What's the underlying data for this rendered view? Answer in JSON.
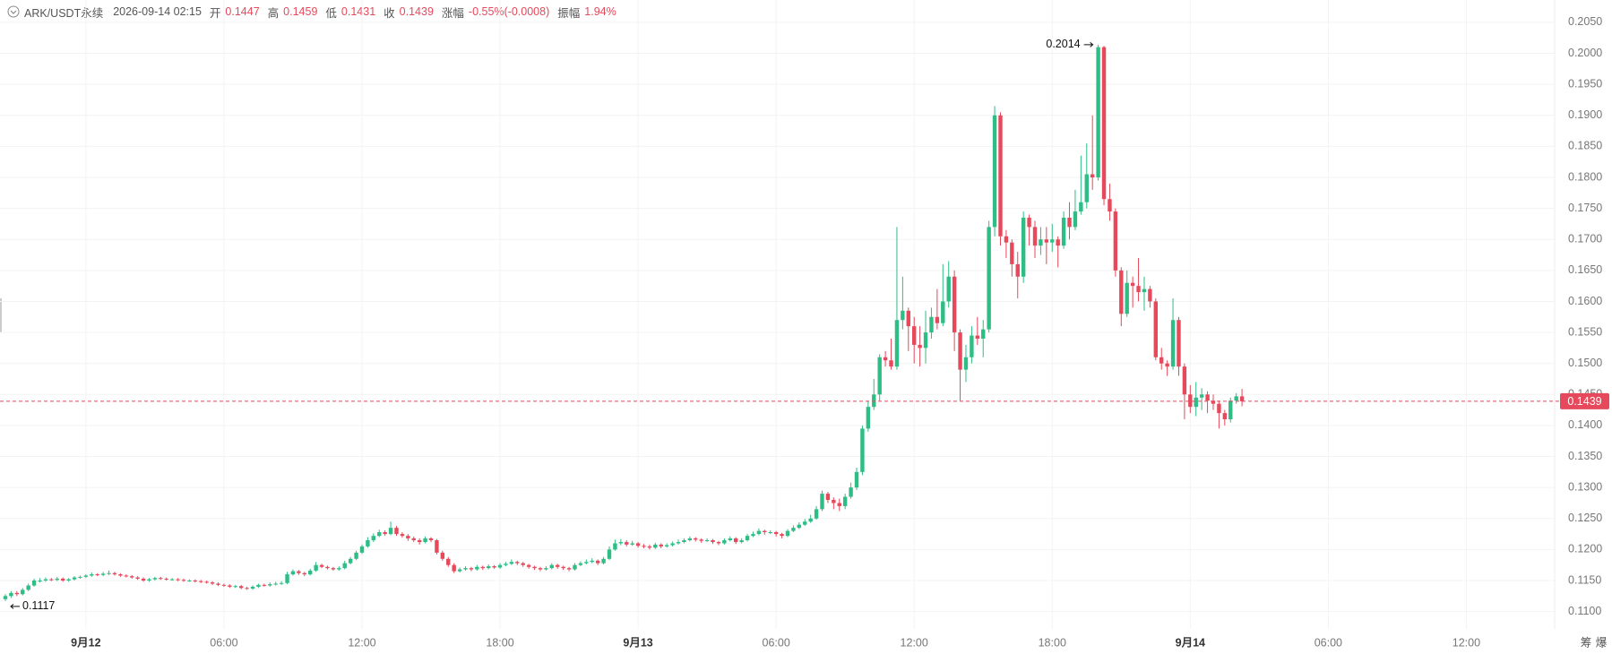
{
  "chart_data": {
    "type": "candlestick",
    "symbol": "ARK/USDT永续",
    "time": "2026-09-14 02:15",
    "fields": [
      {
        "label": "开",
        "value": "0.1447"
      },
      {
        "label": "高",
        "value": "0.1459"
      },
      {
        "label": "低",
        "value": "0.1431"
      },
      {
        "label": "收",
        "value": "0.1439"
      },
      {
        "label": "涨幅",
        "value": "-0.55%(-0.0008)"
      },
      {
        "label": "振幅",
        "value": "1.94%"
      }
    ],
    "up_color": "#2ebd85",
    "down_color": "#e5495b",
    "grid": true,
    "ylim": [
      0.1072,
      0.2086
    ],
    "yticks": [
      {
        "value": 0.11,
        "label": "0.1100"
      },
      {
        "value": 0.115,
        "label": "0.1150"
      },
      {
        "value": 0.12,
        "label": "0.1200"
      },
      {
        "value": 0.125,
        "label": "0.1250"
      },
      {
        "value": 0.13,
        "label": "0.1300"
      },
      {
        "value": 0.135,
        "label": "0.1350"
      },
      {
        "value": 0.14,
        "label": "0.1400"
      },
      {
        "value": 0.145,
        "label": "0.1450"
      },
      {
        "value": 0.15,
        "label": "0.1500"
      },
      {
        "value": 0.155,
        "label": "0.1550"
      },
      {
        "value": 0.16,
        "label": "0.1600"
      },
      {
        "value": 0.165,
        "label": "0.1650"
      },
      {
        "value": 0.17,
        "label": "0.1700"
      },
      {
        "value": 0.175,
        "label": "0.1750"
      },
      {
        "value": 0.18,
        "label": "0.1800"
      },
      {
        "value": 0.185,
        "label": "0.1850"
      },
      {
        "value": 0.19,
        "label": "0.1900"
      },
      {
        "value": 0.195,
        "label": "0.1950"
      },
      {
        "value": 0.2,
        "label": "0.2000"
      },
      {
        "value": 0.205,
        "label": "0.2050"
      }
    ],
    "xticks": [
      "9月12",
      "06:00",
      "12:00",
      "18:00",
      "9月13",
      "06:00",
      "12:00",
      "18:00",
      "9月14",
      "06:00",
      "12:00"
    ],
    "last_price": 0.1439,
    "max_label": "0.2014",
    "min_label": "0.1117",
    "toolbar": [
      "筹",
      "爆"
    ],
    "ohlc": [
      [
        0.112,
        0.1128,
        0.1117,
        0.1125
      ],
      [
        0.1125,
        0.1133,
        0.1122,
        0.113
      ],
      [
        0.113,
        0.1133,
        0.1125,
        0.1128
      ],
      [
        0.1128,
        0.1138,
        0.1126,
        0.1135
      ],
      [
        0.1135,
        0.1145,
        0.1133,
        0.1142
      ],
      [
        0.1142,
        0.1153,
        0.114,
        0.115
      ],
      [
        0.115,
        0.1154,
        0.1147,
        0.115
      ],
      [
        0.115,
        0.1155,
        0.1148,
        0.1152
      ],
      [
        0.1152,
        0.1154,
        0.1149,
        0.1151
      ],
      [
        0.1151,
        0.1156,
        0.1149,
        0.1153
      ],
      [
        0.1153,
        0.1155,
        0.1148,
        0.115
      ],
      [
        0.115,
        0.1154,
        0.1148,
        0.1152
      ],
      [
        0.1152,
        0.1157,
        0.115,
        0.1155
      ],
      [
        0.1155,
        0.1158,
        0.1153,
        0.1156
      ],
      [
        0.1156,
        0.116,
        0.1154,
        0.1158
      ],
      [
        0.1158,
        0.1163,
        0.1156,
        0.116
      ],
      [
        0.116,
        0.1162,
        0.1157,
        0.1159
      ],
      [
        0.1159,
        0.1164,
        0.1157,
        0.1161
      ],
      [
        0.1161,
        0.1166,
        0.1159,
        0.1162
      ],
      [
        0.1162,
        0.1164,
        0.1158,
        0.116
      ],
      [
        0.116,
        0.1162,
        0.1156,
        0.1158
      ],
      [
        0.1158,
        0.116,
        0.1155,
        0.1157
      ],
      [
        0.1157,
        0.1159,
        0.1153,
        0.1155
      ],
      [
        0.1155,
        0.1157,
        0.1151,
        0.1153
      ],
      [
        0.1153,
        0.1155,
        0.1148,
        0.115
      ],
      [
        0.115,
        0.1154,
        0.1148,
        0.1152
      ],
      [
        0.1152,
        0.1156,
        0.115,
        0.1154
      ],
      [
        0.1154,
        0.1156,
        0.1151,
        0.1153
      ],
      [
        0.1153,
        0.1155,
        0.115,
        0.1152
      ],
      [
        0.1152,
        0.1154,
        0.115,
        0.1152
      ],
      [
        0.1152,
        0.1154,
        0.1149,
        0.1151
      ],
      [
        0.1151,
        0.1153,
        0.1148,
        0.115
      ],
      [
        0.115,
        0.1152,
        0.1148,
        0.115
      ],
      [
        0.115,
        0.1152,
        0.1147,
        0.1149
      ],
      [
        0.1149,
        0.1151,
        0.1146,
        0.1148
      ],
      [
        0.1148,
        0.115,
        0.1145,
        0.1147
      ],
      [
        0.1147,
        0.1149,
        0.1143,
        0.1145
      ],
      [
        0.1145,
        0.1147,
        0.1141,
        0.1143
      ],
      [
        0.1143,
        0.1145,
        0.114,
        0.1142
      ],
      [
        0.1142,
        0.1144,
        0.1138,
        0.114
      ],
      [
        0.114,
        0.1143,
        0.1138,
        0.1141
      ],
      [
        0.1141,
        0.1143,
        0.1136,
        0.1138
      ],
      [
        0.1138,
        0.114,
        0.1135,
        0.1137
      ],
      [
        0.1137,
        0.1142,
        0.1135,
        0.114
      ],
      [
        0.114,
        0.1145,
        0.1138,
        0.1143
      ],
      [
        0.1143,
        0.1145,
        0.114,
        0.1142
      ],
      [
        0.1142,
        0.1147,
        0.114,
        0.1144
      ],
      [
        0.1144,
        0.1148,
        0.1142,
        0.1145
      ],
      [
        0.1145,
        0.1149,
        0.1143,
        0.1146
      ],
      [
        0.1146,
        0.1164,
        0.1144,
        0.116
      ],
      [
        0.116,
        0.1168,
        0.1158,
        0.1165
      ],
      [
        0.1165,
        0.1167,
        0.1159,
        0.1162
      ],
      [
        0.1162,
        0.1164,
        0.1157,
        0.116
      ],
      [
        0.116,
        0.1169,
        0.1158,
        0.1166
      ],
      [
        0.1166,
        0.118,
        0.1164,
        0.1175
      ],
      [
        0.1175,
        0.1177,
        0.117,
        0.1172
      ],
      [
        0.1172,
        0.1174,
        0.1168,
        0.117
      ],
      [
        0.117,
        0.1172,
        0.1166,
        0.1168
      ],
      [
        0.1168,
        0.1173,
        0.1166,
        0.117
      ],
      [
        0.117,
        0.1182,
        0.1168,
        0.1178
      ],
      [
        0.1178,
        0.1188,
        0.1176,
        0.1185
      ],
      [
        0.1185,
        0.1198,
        0.1183,
        0.1195
      ],
      [
        0.1195,
        0.1208,
        0.1193,
        0.1205
      ],
      [
        0.1205,
        0.122,
        0.1203,
        0.1215
      ],
      [
        0.1215,
        0.1226,
        0.1212,
        0.1222
      ],
      [
        0.1222,
        0.1232,
        0.122,
        0.1228
      ],
      [
        0.1228,
        0.1231,
        0.1222,
        0.1225
      ],
      [
        0.1225,
        0.1245,
        0.1223,
        0.1235
      ],
      [
        0.1235,
        0.1238,
        0.1222,
        0.1225
      ],
      [
        0.1225,
        0.1228,
        0.1219,
        0.1222
      ],
      [
        0.1222,
        0.1225,
        0.1214,
        0.1218
      ],
      [
        0.1218,
        0.1221,
        0.1212,
        0.1215
      ],
      [
        0.1215,
        0.1218,
        0.1208,
        0.1212
      ],
      [
        0.1212,
        0.1221,
        0.121,
        0.1218
      ],
      [
        0.1218,
        0.122,
        0.1212,
        0.1215
      ],
      [
        0.1215,
        0.1217,
        0.1192,
        0.1195
      ],
      [
        0.1195,
        0.1198,
        0.1182,
        0.1185
      ],
      [
        0.1185,
        0.1188,
        0.1172,
        0.1175
      ],
      [
        0.1175,
        0.1178,
        0.1162,
        0.1165
      ],
      [
        0.1165,
        0.1171,
        0.1163,
        0.1168
      ],
      [
        0.1168,
        0.1173,
        0.1166,
        0.117
      ],
      [
        0.117,
        0.1172,
        0.1165,
        0.1168
      ],
      [
        0.1168,
        0.1175,
        0.1166,
        0.1172
      ],
      [
        0.1172,
        0.1174,
        0.1167,
        0.117
      ],
      [
        0.117,
        0.1176,
        0.1168,
        0.1173
      ],
      [
        0.1173,
        0.1175,
        0.1169,
        0.1171
      ],
      [
        0.1171,
        0.1178,
        0.1169,
        0.1175
      ],
      [
        0.1175,
        0.118,
        0.1173,
        0.1177
      ],
      [
        0.1177,
        0.1184,
        0.1175,
        0.118
      ],
      [
        0.118,
        0.1182,
        0.1175,
        0.1178
      ],
      [
        0.1178,
        0.118,
        0.1172,
        0.1175
      ],
      [
        0.1175,
        0.1177,
        0.1169,
        0.1172
      ],
      [
        0.1172,
        0.1174,
        0.1167,
        0.117
      ],
      [
        0.117,
        0.1172,
        0.1165,
        0.1168
      ],
      [
        0.1168,
        0.1173,
        0.1166,
        0.117
      ],
      [
        0.117,
        0.1178,
        0.1168,
        0.1175
      ],
      [
        0.1175,
        0.1177,
        0.1169,
        0.1172
      ],
      [
        0.1172,
        0.1174,
        0.1167,
        0.117
      ],
      [
        0.117,
        0.1172,
        0.1165,
        0.1168
      ],
      [
        0.1168,
        0.1178,
        0.1166,
        0.1175
      ],
      [
        0.1175,
        0.1181,
        0.1173,
        0.1178
      ],
      [
        0.1178,
        0.1184,
        0.1176,
        0.118
      ],
      [
        0.118,
        0.1186,
        0.1178,
        0.1182
      ],
      [
        0.1182,
        0.1184,
        0.1175,
        0.1178
      ],
      [
        0.1178,
        0.1188,
        0.1176,
        0.1185
      ],
      [
        0.1185,
        0.1205,
        0.1183,
        0.12
      ],
      [
        0.12,
        0.1216,
        0.1198,
        0.121
      ],
      [
        0.121,
        0.1217,
        0.1207,
        0.1212
      ],
      [
        0.1212,
        0.1215,
        0.1205,
        0.1208
      ],
      [
        0.1208,
        0.1214,
        0.1206,
        0.121
      ],
      [
        0.121,
        0.1212,
        0.1203,
        0.1206
      ],
      [
        0.1206,
        0.1209,
        0.1202,
        0.1205
      ],
      [
        0.1205,
        0.1208,
        0.12,
        0.1203
      ],
      [
        0.1203,
        0.1211,
        0.1201,
        0.1208
      ],
      [
        0.1208,
        0.121,
        0.1202,
        0.1205
      ],
      [
        0.1205,
        0.121,
        0.1203,
        0.1207
      ],
      [
        0.1207,
        0.1213,
        0.1205,
        0.121
      ],
      [
        0.121,
        0.1216,
        0.1208,
        0.1212
      ],
      [
        0.1212,
        0.1218,
        0.121,
        0.1215
      ],
      [
        0.1215,
        0.1221,
        0.1213,
        0.1218
      ],
      [
        0.1218,
        0.122,
        0.1213,
        0.1216
      ],
      [
        0.1216,
        0.1218,
        0.1211,
        0.1214
      ],
      [
        0.1214,
        0.1218,
        0.1212,
        0.1215
      ],
      [
        0.1215,
        0.1217,
        0.1209,
        0.1212
      ],
      [
        0.1212,
        0.1214,
        0.1207,
        0.121
      ],
      [
        0.121,
        0.1218,
        0.1208,
        0.1215
      ],
      [
        0.1215,
        0.1221,
        0.1213,
        0.1218
      ],
      [
        0.1218,
        0.122,
        0.1209,
        0.1212
      ],
      [
        0.1212,
        0.1218,
        0.121,
        0.1215
      ],
      [
        0.1215,
        0.1225,
        0.1213,
        0.1222
      ],
      [
        0.1222,
        0.1229,
        0.122,
        0.1225
      ],
      [
        0.1225,
        0.1234,
        0.1223,
        0.123
      ],
      [
        0.123,
        0.1232,
        0.1224,
        0.1228
      ],
      [
        0.1228,
        0.1231,
        0.1225,
        0.1228
      ],
      [
        0.1228,
        0.123,
        0.1221,
        0.1225
      ],
      [
        0.1225,
        0.1227,
        0.1218,
        0.1222
      ],
      [
        0.1222,
        0.1233,
        0.122,
        0.123
      ],
      [
        0.123,
        0.1239,
        0.1228,
        0.1235
      ],
      [
        0.1235,
        0.1244,
        0.1233,
        0.124
      ],
      [
        0.124,
        0.1249,
        0.1238,
        0.1245
      ],
      [
        0.1245,
        0.1256,
        0.1243,
        0.125
      ],
      [
        0.125,
        0.127,
        0.1248,
        0.1265
      ],
      [
        0.1265,
        0.1295,
        0.1262,
        0.129
      ],
      [
        0.129,
        0.1293,
        0.1275,
        0.128
      ],
      [
        0.128,
        0.1284,
        0.1265,
        0.1275
      ],
      [
        0.1275,
        0.1282,
        0.1262,
        0.127
      ],
      [
        0.127,
        0.129,
        0.1265,
        0.1285
      ],
      [
        0.1285,
        0.1308,
        0.1282,
        0.13
      ],
      [
        0.13,
        0.1332,
        0.1296,
        0.1325
      ],
      [
        0.1325,
        0.14,
        0.132,
        0.1395
      ],
      [
        0.1395,
        0.144,
        0.139,
        0.143
      ],
      [
        0.143,
        0.1475,
        0.1425,
        0.145
      ],
      [
        0.145,
        0.1515,
        0.144,
        0.151
      ],
      [
        0.151,
        0.152,
        0.1495,
        0.1505
      ],
      [
        0.1505,
        0.154,
        0.149,
        0.1495
      ],
      [
        0.1495,
        0.172,
        0.149,
        0.157
      ],
      [
        0.157,
        0.164,
        0.1555,
        0.1585
      ],
      [
        0.1585,
        0.159,
        0.152,
        0.156
      ],
      [
        0.156,
        0.1575,
        0.15,
        0.153
      ],
      [
        0.153,
        0.156,
        0.1495,
        0.1525
      ],
      [
        0.1525,
        0.1585,
        0.15,
        0.155
      ],
      [
        0.155,
        0.159,
        0.154,
        0.1575
      ],
      [
        0.1575,
        0.162,
        0.1555,
        0.1565
      ],
      [
        0.1565,
        0.166,
        0.156,
        0.16
      ],
      [
        0.16,
        0.1665,
        0.159,
        0.164
      ],
      [
        0.164,
        0.165,
        0.152,
        0.155
      ],
      [
        0.155,
        0.1555,
        0.144,
        0.149
      ],
      [
        0.149,
        0.153,
        0.147,
        0.151
      ],
      [
        0.151,
        0.156,
        0.15,
        0.1545
      ],
      [
        0.1545,
        0.1575,
        0.153,
        0.154
      ],
      [
        0.154,
        0.157,
        0.151,
        0.1555
      ],
      [
        0.1555,
        0.173,
        0.155,
        0.172
      ],
      [
        0.172,
        0.1915,
        0.1705,
        0.19
      ],
      [
        0.19,
        0.1905,
        0.169,
        0.1705
      ],
      [
        0.1705,
        0.1715,
        0.167,
        0.1695
      ],
      [
        0.1695,
        0.17,
        0.164,
        0.166
      ],
      [
        0.166,
        0.168,
        0.1605,
        0.164
      ],
      [
        0.164,
        0.1745,
        0.163,
        0.1735
      ],
      [
        0.1735,
        0.174,
        0.169,
        0.172
      ],
      [
        0.172,
        0.173,
        0.167,
        0.169
      ],
      [
        0.169,
        0.172,
        0.1675,
        0.17
      ],
      [
        0.17,
        0.172,
        0.166,
        0.1695
      ],
      [
        0.1695,
        0.1725,
        0.168,
        0.17
      ],
      [
        0.17,
        0.1705,
        0.1655,
        0.169
      ],
      [
        0.169,
        0.1745,
        0.1685,
        0.1735
      ],
      [
        0.1735,
        0.176,
        0.17,
        0.172
      ],
      [
        0.172,
        0.178,
        0.1715,
        0.1745
      ],
      [
        0.1745,
        0.1835,
        0.174,
        0.176
      ],
      [
        0.176,
        0.1855,
        0.175,
        0.1805
      ],
      [
        0.1805,
        0.19,
        0.178,
        0.18
      ],
      [
        0.18,
        0.2014,
        0.1795,
        0.201
      ],
      [
        0.201,
        0.2012,
        0.1755,
        0.1765
      ],
      [
        0.1765,
        0.179,
        0.173,
        0.1745
      ],
      [
        0.1745,
        0.175,
        0.164,
        0.165
      ],
      [
        0.165,
        0.1655,
        0.156,
        0.158
      ],
      [
        0.158,
        0.165,
        0.1575,
        0.163
      ],
      [
        0.163,
        0.164,
        0.159,
        0.1625
      ],
      [
        0.1625,
        0.167,
        0.16,
        0.1615
      ],
      [
        0.1615,
        0.164,
        0.1585,
        0.162
      ],
      [
        0.162,
        0.1625,
        0.159,
        0.16
      ],
      [
        0.16,
        0.1605,
        0.1505,
        0.151
      ],
      [
        0.151,
        0.1525,
        0.149,
        0.15
      ],
      [
        0.15,
        0.1505,
        0.148,
        0.1495
      ],
      [
        0.1495,
        0.1605,
        0.149,
        0.157
      ],
      [
        0.157,
        0.1575,
        0.148,
        0.1495
      ],
      [
        0.1495,
        0.15,
        0.141,
        0.145
      ],
      [
        0.145,
        0.1465,
        0.142,
        0.143
      ],
      [
        0.143,
        0.147,
        0.1415,
        0.1445
      ],
      [
        0.1445,
        0.146,
        0.1425,
        0.145
      ],
      [
        0.145,
        0.1455,
        0.142,
        0.144
      ],
      [
        0.144,
        0.145,
        0.1425,
        0.1435
      ],
      [
        0.1435,
        0.144,
        0.1395,
        0.142
      ],
      [
        0.142,
        0.1425,
        0.14,
        0.141
      ],
      [
        0.141,
        0.1445,
        0.1405,
        0.144
      ],
      [
        0.144,
        0.1452,
        0.1435,
        0.1447
      ],
      [
        0.1447,
        0.1459,
        0.1431,
        0.1439
      ]
    ]
  }
}
